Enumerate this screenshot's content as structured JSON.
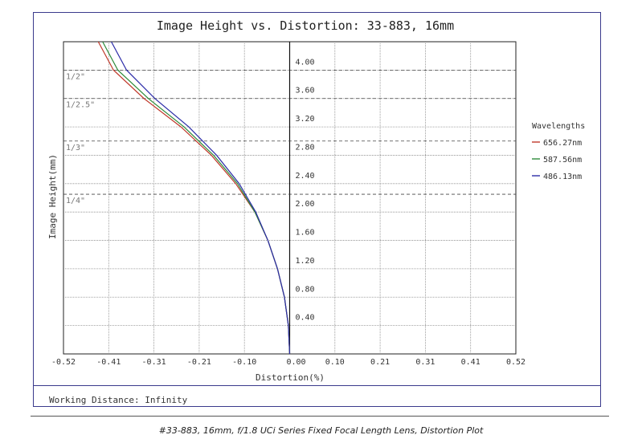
{
  "chart_data": {
    "type": "line",
    "title": "Image Height vs. Distortion: 33-883, 16mm",
    "xlabel": "Distortion(%)",
    "ylabel": "Image Height(mm)",
    "xlim": [
      -0.52,
      0.52
    ],
    "ylim": [
      0,
      4.4
    ],
    "x_ticks": [
      "-0.52",
      "-0.41",
      "-0.31",
      "-0.21",
      "-0.10",
      "0.00",
      "0.10",
      "0.21",
      "0.31",
      "0.41",
      "0.52"
    ],
    "y_ticks": [
      "0.40",
      "0.80",
      "1.20",
      "1.60",
      "2.00",
      "2.40",
      "2.80",
      "3.20",
      "3.60",
      "4.00"
    ],
    "sensor_lines": [
      {
        "label": "1/2\"",
        "y": 4.0
      },
      {
        "label": "1/2.5\"",
        "y": 3.6
      },
      {
        "label": "1/3\"",
        "y": 3.0
      },
      {
        "label": "1/4\"",
        "y": 2.25
      }
    ],
    "grid": true,
    "legend_title": "Wavelengths",
    "legend_position": "right",
    "series": [
      {
        "name": "656.27nm",
        "color": "#c0392b",
        "points": [
          [
            0.0,
            0.0
          ],
          [
            -0.003,
            0.4
          ],
          [
            -0.012,
            0.8
          ],
          [
            -0.028,
            1.2
          ],
          [
            -0.05,
            1.6
          ],
          [
            -0.08,
            2.0
          ],
          [
            -0.124,
            2.4
          ],
          [
            -0.18,
            2.8
          ],
          [
            -0.25,
            3.2
          ],
          [
            -0.335,
            3.6
          ],
          [
            -0.405,
            4.0
          ],
          [
            -0.44,
            4.4
          ]
        ]
      },
      {
        "name": "587.56nm",
        "color": "#2e8b3a",
        "points": [
          [
            0.0,
            0.0
          ],
          [
            -0.003,
            0.4
          ],
          [
            -0.012,
            0.8
          ],
          [
            -0.028,
            1.2
          ],
          [
            -0.05,
            1.6
          ],
          [
            -0.08,
            2.0
          ],
          [
            -0.12,
            2.4
          ],
          [
            -0.175,
            2.8
          ],
          [
            -0.243,
            3.2
          ],
          [
            -0.325,
            3.6
          ],
          [
            -0.395,
            4.0
          ],
          [
            -0.43,
            4.4
          ]
        ]
      },
      {
        "name": "486.13nm",
        "color": "#2c2ca8",
        "points": [
          [
            0.0,
            0.0
          ],
          [
            -0.003,
            0.4
          ],
          [
            -0.012,
            0.8
          ],
          [
            -0.028,
            1.2
          ],
          [
            -0.05,
            1.6
          ],
          [
            -0.078,
            2.0
          ],
          [
            -0.116,
            2.4
          ],
          [
            -0.168,
            2.8
          ],
          [
            -0.232,
            3.2
          ],
          [
            -0.31,
            3.6
          ],
          [
            -0.375,
            4.0
          ],
          [
            -0.41,
            4.4
          ]
        ]
      }
    ]
  },
  "footer": {
    "working_distance": "Working Distance: Infinity"
  },
  "caption": "#33-883, 16mm, f/1.8 UCi Series Fixed Focal Length Lens, Distortion Plot"
}
